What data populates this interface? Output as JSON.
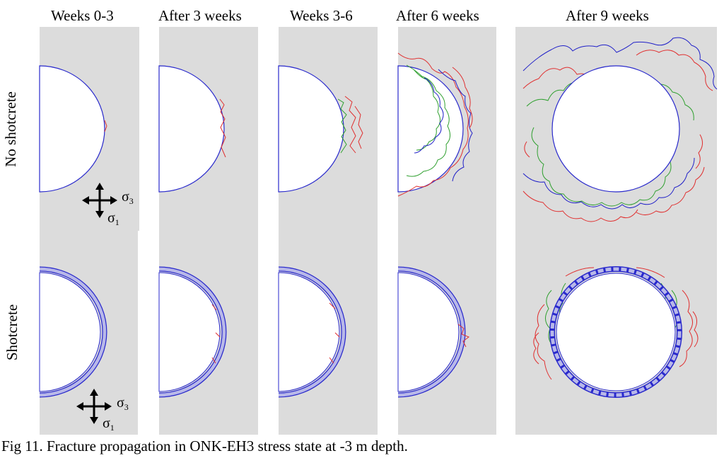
{
  "columns": [
    {
      "title": "Weeks 0-3"
    },
    {
      "title": "After 3 weeks"
    },
    {
      "title": "Weeks 3-6"
    },
    {
      "title": "After 6 weeks"
    },
    {
      "title": "After 9 weeks"
    }
  ],
  "rows": [
    {
      "label": "No shotcrete"
    },
    {
      "label": "Shotcrete"
    }
  ],
  "stress_axes": {
    "horizontal": "σ",
    "horizontal_sub": "3",
    "vertical": "σ",
    "vertical_sub": "1"
  },
  "caption": "Fig 11. Fracture propagation in ONK-EH3 stress state at -3 m depth.",
  "colors": {
    "panel": "#dcdcdc",
    "boundary": "#2a2acc",
    "shotcrete_fill": "#b8b8e8",
    "fracture_red": "#e03030",
    "fracture_blue": "#2020c8",
    "fracture_green": "#30a030"
  }
}
